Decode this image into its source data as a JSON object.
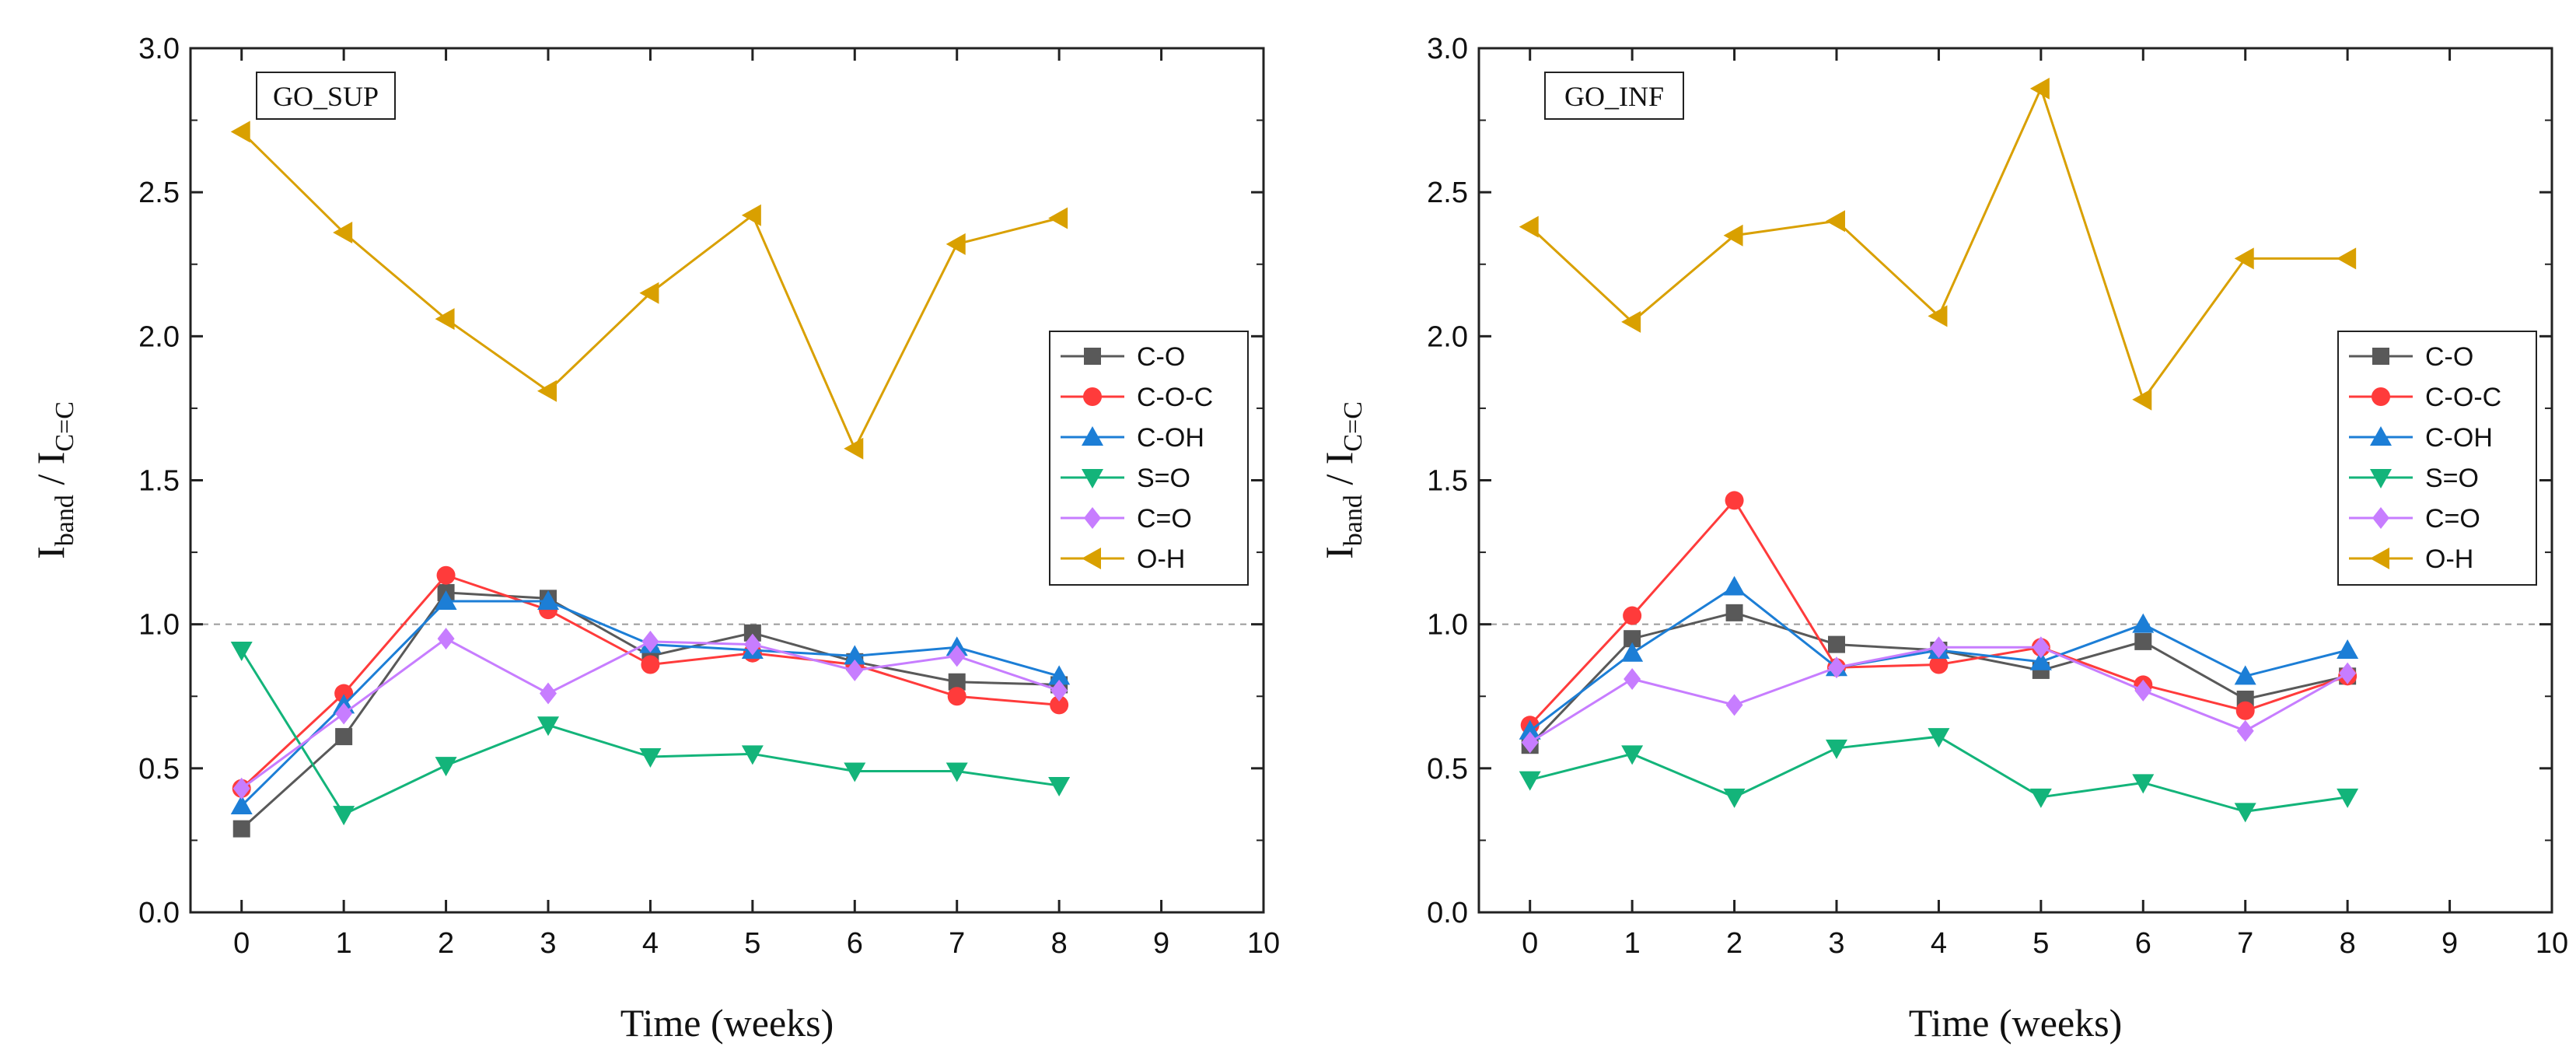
{
  "chart_data": [
    {
      "type": "line",
      "title": "GO_SUP",
      "xlabel": "Time (weeks)",
      "ylabel": {
        "main": "I",
        "sub1": "band",
        "sep": " / I",
        "sub2": "C=C"
      },
      "xlim": [
        -0.5,
        10
      ],
      "ylim": [
        0,
        3.0
      ],
      "x_ticks": [
        0,
        1,
        2,
        3,
        4,
        5,
        6,
        7,
        8,
        9,
        10
      ],
      "y_ticks": [
        "0.0",
        "0.5",
        "1.0",
        "1.5",
        "2.0",
        "2.5",
        "3.0"
      ],
      "reference_line": 1.0,
      "legend_position": "right",
      "x": [
        0,
        1,
        2,
        3,
        4,
        5,
        6,
        7,
        8
      ],
      "series": [
        {
          "name": "C-O",
          "color": "#595959",
          "marker": "square",
          "values": [
            0.29,
            0.61,
            1.11,
            1.09,
            0.89,
            0.97,
            0.87,
            0.8,
            0.79
          ]
        },
        {
          "name": "C-O-C",
          "color": "#ff3b3b",
          "marker": "circle",
          "values": [
            0.43,
            0.76,
            1.17,
            1.05,
            0.86,
            0.9,
            0.86,
            0.75,
            0.72
          ]
        },
        {
          "name": "C-OH",
          "color": "#1c7ed6",
          "marker": "triangle-up",
          "values": [
            0.37,
            0.72,
            1.08,
            1.08,
            0.93,
            0.91,
            0.89,
            0.92,
            0.82
          ]
        },
        {
          "name": "S=O",
          "color": "#13b47a",
          "marker": "triangle-down",
          "values": [
            0.91,
            0.34,
            0.51,
            0.65,
            0.54,
            0.55,
            0.49,
            0.49,
            0.44
          ]
        },
        {
          "name": "C=O",
          "color": "#c77dff",
          "marker": "diamond",
          "values": [
            0.43,
            0.69,
            0.95,
            0.76,
            0.94,
            0.93,
            0.84,
            0.89,
            0.77
          ]
        },
        {
          "name": "O-H",
          "color": "#d9a000",
          "marker": "triangle-left",
          "values": [
            2.71,
            2.36,
            2.06,
            1.81,
            2.15,
            2.42,
            1.61,
            2.32,
            2.41
          ]
        }
      ]
    },
    {
      "type": "line",
      "title": "GO_INF",
      "xlabel": "Time (weeks)",
      "ylabel": {
        "main": "I",
        "sub1": "band",
        "sep": " / I",
        "sub2": "C=C"
      },
      "xlim": [
        -0.5,
        10
      ],
      "ylim": [
        0,
        3.0
      ],
      "x_ticks": [
        0,
        1,
        2,
        3,
        4,
        5,
        6,
        7,
        8,
        9,
        10
      ],
      "y_ticks": [
        "0.0",
        "0.5",
        "1.0",
        "1.5",
        "2.0",
        "2.5",
        "3.0"
      ],
      "reference_line": 1.0,
      "legend_position": "right",
      "x": [
        0,
        1,
        2,
        3,
        4,
        5,
        6,
        7,
        8
      ],
      "series": [
        {
          "name": "C-O",
          "color": "#595959",
          "marker": "square",
          "values": [
            0.58,
            0.95,
            1.04,
            0.93,
            0.91,
            0.84,
            0.94,
            0.74,
            0.82
          ]
        },
        {
          "name": "C-O-C",
          "color": "#ff3b3b",
          "marker": "circle",
          "values": [
            0.65,
            1.03,
            1.43,
            0.85,
            0.86,
            0.92,
            0.79,
            0.7,
            0.82
          ]
        },
        {
          "name": "C-OH",
          "color": "#1c7ed6",
          "marker": "triangle-up",
          "values": [
            0.63,
            0.9,
            1.13,
            0.85,
            0.91,
            0.87,
            1.0,
            0.82,
            0.91
          ]
        },
        {
          "name": "S=O",
          "color": "#13b47a",
          "marker": "triangle-down",
          "values": [
            0.46,
            0.55,
            0.4,
            0.57,
            0.61,
            0.4,
            0.45,
            0.35,
            0.4
          ]
        },
        {
          "name": "C=O",
          "color": "#c77dff",
          "marker": "diamond",
          "values": [
            0.59,
            0.81,
            0.72,
            0.85,
            0.92,
            0.92,
            0.77,
            0.63,
            0.83
          ]
        },
        {
          "name": "O-H",
          "color": "#d9a000",
          "marker": "triangle-left",
          "values": [
            2.38,
            2.05,
            2.35,
            2.4,
            2.07,
            2.86,
            1.78,
            2.27,
            2.27
          ]
        }
      ]
    }
  ]
}
